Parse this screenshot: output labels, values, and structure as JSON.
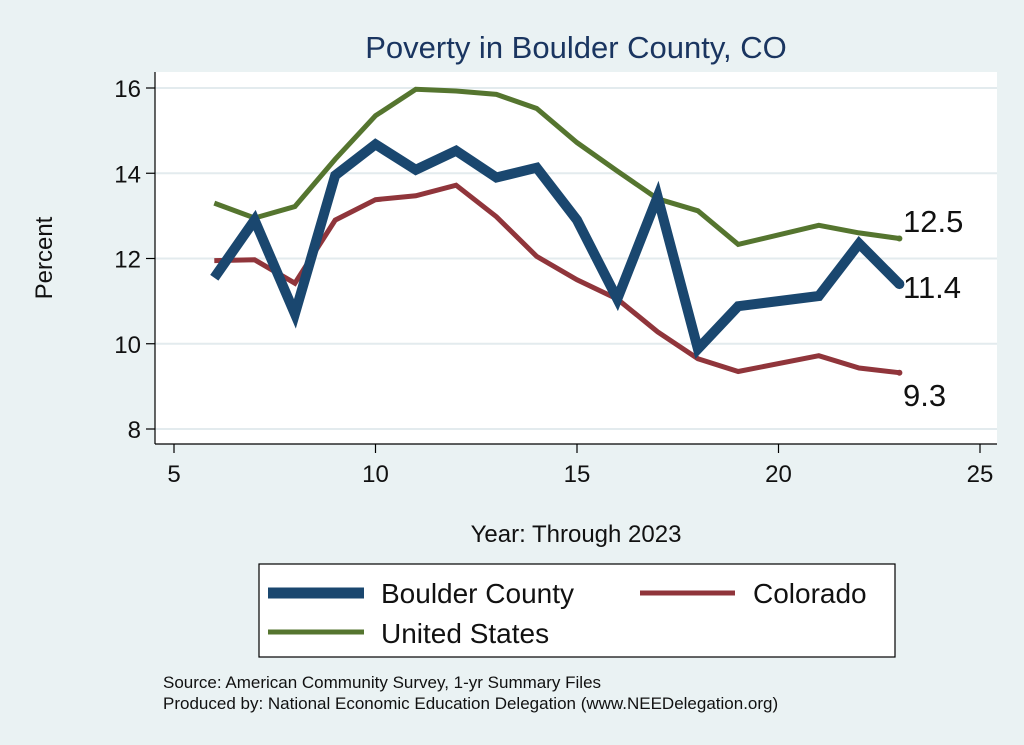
{
  "chart_data": {
    "type": "line",
    "title": "Poverty in Boulder County, CO",
    "xlabel": "Year: Through 2023",
    "ylabel": "Percent",
    "xlim": [
      5,
      25
    ],
    "ylim": [
      8,
      16
    ],
    "xticks": [
      "5",
      "10",
      "15",
      "20",
      "25"
    ],
    "yticks": [
      "8",
      "10",
      "12",
      "14",
      "16"
    ],
    "grid": true,
    "legend_position": "bottom",
    "series": [
      {
        "name": "Boulder County",
        "color": "#1a476f",
        "x": [
          6,
          7,
          8,
          9,
          10,
          11,
          12,
          13,
          14,
          15,
          16,
          17,
          18,
          19,
          21,
          22,
          23
        ],
        "y": [
          11.55,
          12.9,
          10.7,
          13.95,
          14.68,
          14.08,
          14.53,
          13.9,
          14.13,
          12.9,
          11.05,
          13.45,
          9.88,
          10.88,
          11.12,
          12.35,
          11.4
        ],
        "end_label": "11.4"
      },
      {
        "name": "Colorado",
        "color": "#90353b",
        "x": [
          6,
          7,
          8,
          9,
          10,
          11,
          12,
          13,
          14,
          15,
          16,
          17,
          18,
          19,
          21,
          22,
          23
        ],
        "y": [
          11.95,
          11.97,
          11.42,
          12.9,
          13.38,
          13.47,
          13.72,
          12.98,
          12.05,
          11.5,
          11.05,
          10.28,
          9.65,
          9.35,
          9.72,
          9.43,
          9.32
        ],
        "end_label": "9.3"
      },
      {
        "name": "United States",
        "color": "#55752f",
        "x": [
          6,
          7,
          8,
          9,
          10,
          11,
          12,
          13,
          14,
          15,
          16,
          17,
          18,
          19,
          21,
          22,
          23
        ],
        "y": [
          13.3,
          12.95,
          13.22,
          14.33,
          15.35,
          15.97,
          15.93,
          15.85,
          15.52,
          14.72,
          14.05,
          13.4,
          13.12,
          12.33,
          12.78,
          12.6,
          12.47
        ],
        "end_label": "12.5"
      }
    ],
    "notes": [
      "Source: American Community Survey, 1-yr Summary Files",
      "Produced by: National Economic Education Delegation (www.NEEDelegation.org)"
    ]
  }
}
